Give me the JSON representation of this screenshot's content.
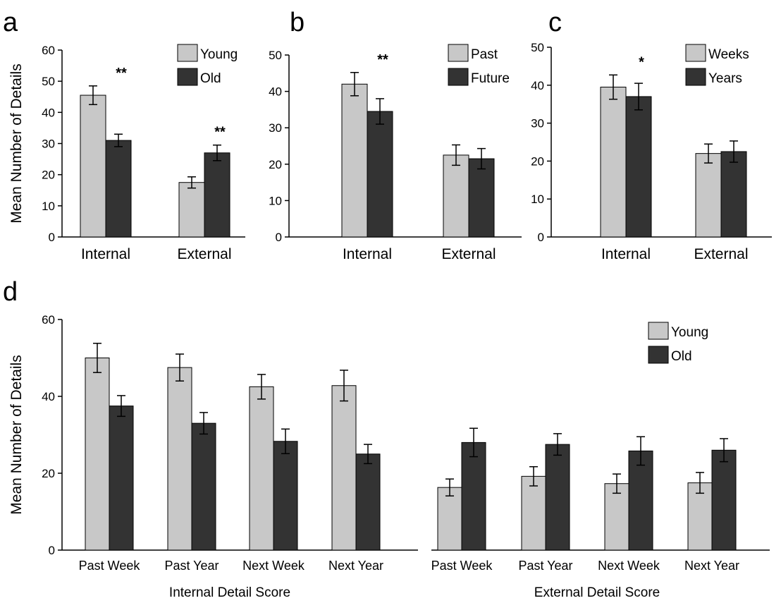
{
  "colors": {
    "light_bar": "#c8c8c8",
    "dark_bar": "#333333",
    "axis": "#000000"
  },
  "chart_data": [
    {
      "id": "a",
      "type": "bar",
      "panel_label": "a",
      "ylabel": "Mean Number of Details",
      "ylim": [
        0,
        60
      ],
      "yticks": [
        0,
        10,
        20,
        30,
        40,
        50,
        60
      ],
      "categories": [
        "Internal",
        "External"
      ],
      "series": [
        {
          "name": "Young",
          "values": [
            45.5,
            17.5
          ],
          "errors": [
            3.0,
            1.8
          ]
        },
        {
          "name": "Old",
          "values": [
            31.0,
            27.0
          ],
          "errors": [
            2.0,
            2.5
          ]
        }
      ],
      "annotations": [
        "**",
        "**"
      ],
      "legend": "top-right"
    },
    {
      "id": "b",
      "type": "bar",
      "panel_label": "b",
      "ylabel": "",
      "ylim": [
        0,
        50
      ],
      "yticks": [
        0,
        10,
        20,
        30,
        40,
        50
      ],
      "categories": [
        "Internal",
        "External"
      ],
      "series": [
        {
          "name": "Past",
          "values": [
            42.0,
            22.5
          ],
          "errors": [
            3.2,
            2.8
          ]
        },
        {
          "name": "Future",
          "values": [
            34.5,
            21.5
          ],
          "errors": [
            3.5,
            2.8
          ]
        }
      ],
      "annotations": [
        "**",
        ""
      ],
      "legend": "top-right"
    },
    {
      "id": "c",
      "type": "bar",
      "panel_label": "c",
      "ylabel": "",
      "ylim": [
        0,
        50
      ],
      "yticks": [
        0,
        10,
        20,
        30,
        40,
        50
      ],
      "categories": [
        "Internal",
        "External"
      ],
      "series": [
        {
          "name": "Weeks",
          "values": [
            39.5,
            22.0
          ],
          "errors": [
            3.2,
            2.5
          ]
        },
        {
          "name": "Years",
          "values": [
            37.0,
            22.5
          ],
          "errors": [
            3.5,
            2.8
          ]
        }
      ],
      "annotations": [
        "*",
        ""
      ],
      "legend": "top-right"
    },
    {
      "id": "d",
      "type": "bar",
      "panel_label": "d",
      "ylabel": "Mean Number of Details",
      "ylim": [
        0,
        60
      ],
      "yticks": [
        0,
        20,
        40,
        60
      ],
      "groups": [
        {
          "label": "Internal Detail Score",
          "categories": [
            "Past Week",
            "Past Year",
            "Next Week",
            "Next Year"
          ]
        },
        {
          "label": "External Detail Score",
          "categories": [
            "Past Week",
            "Past Year",
            "Next Week",
            "Next Year"
          ]
        }
      ],
      "series": [
        {
          "name": "Young",
          "values": [
            50.0,
            47.5,
            42.5,
            42.8,
            16.3,
            19.2,
            17.3,
            17.5
          ],
          "errors": [
            3.8,
            3.5,
            3.2,
            4.0,
            2.2,
            2.5,
            2.5,
            2.7
          ]
        },
        {
          "name": "Old",
          "values": [
            37.5,
            33.0,
            28.3,
            25.0,
            28.0,
            27.5,
            25.8,
            26.0
          ],
          "errors": [
            2.7,
            2.8,
            3.2,
            2.5,
            3.7,
            2.8,
            3.7,
            3.0
          ]
        }
      ],
      "legend": "top-right"
    }
  ]
}
